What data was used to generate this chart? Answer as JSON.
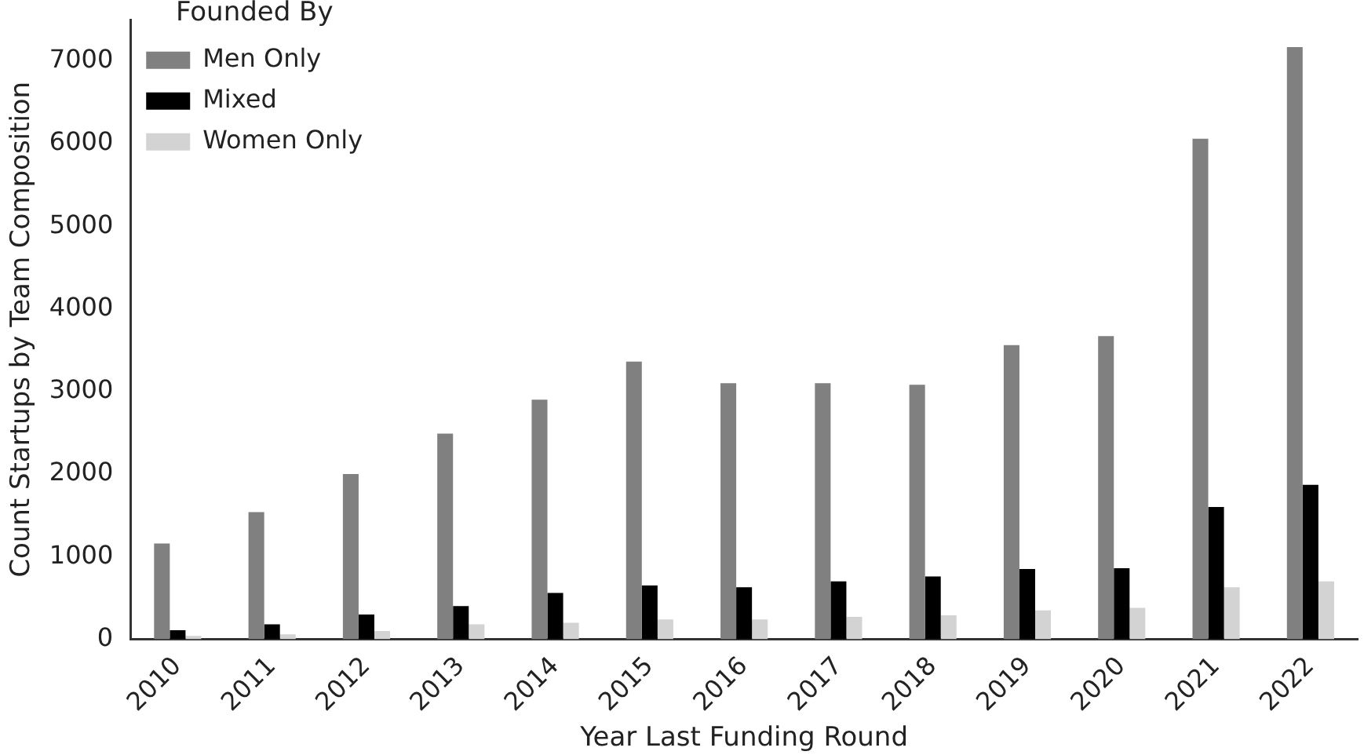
{
  "chart_data": {
    "type": "bar",
    "xlabel": "Year Last Funding Round",
    "ylabel": "Count Startups by Team Composition",
    "legend_title": "Founded By",
    "legend": "top left",
    "grid": false,
    "categories": [
      "2010",
      "2011",
      "2012",
      "2013",
      "2014",
      "2015",
      "2016",
      "2017",
      "2018",
      "2019",
      "2020",
      "2021",
      "2022"
    ],
    "ylim": [
      0,
      7500
    ],
    "yticks": [
      0,
      1000,
      2000,
      3000,
      4000,
      5000,
      6000,
      7000
    ],
    "series": [
      {
        "name": "Men Only",
        "color": "#808080",
        "values": [
          1160,
          1540,
          2000,
          2490,
          2900,
          3360,
          3100,
          3100,
          3080,
          3560,
          3670,
          6060,
          7170
        ]
      },
      {
        "name": "Mixed",
        "color": "#000000",
        "values": [
          110,
          180,
          300,
          400,
          560,
          650,
          630,
          700,
          760,
          850,
          860,
          1600,
          1870
        ]
      },
      {
        "name": "Women Only",
        "color": "#d3d3d3",
        "values": [
          40,
          60,
          100,
          180,
          200,
          240,
          240,
          270,
          290,
          350,
          380,
          630,
          700
        ]
      }
    ]
  }
}
